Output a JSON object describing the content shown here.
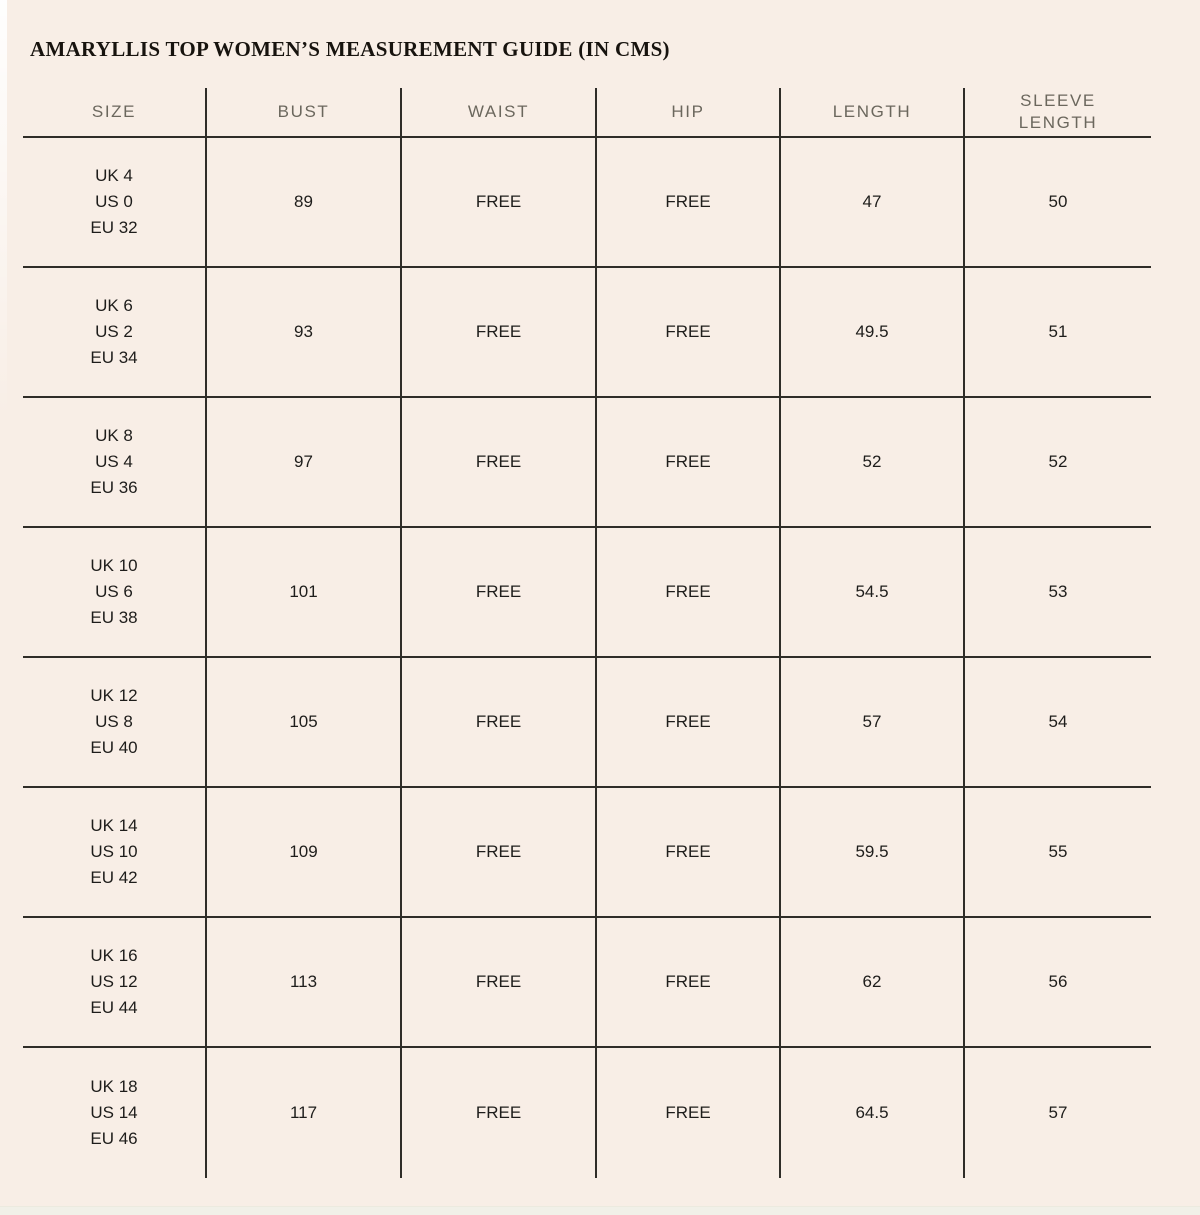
{
  "page": {
    "title": "AMARYLLIS TOP WOMEN’S MEASUREMENT GUIDE (IN CMS)"
  },
  "colors": {
    "background": "#f8eee6",
    "table_line": "#2f2d28",
    "header_text": "#6b675d",
    "cell_text": "#1e1d1b"
  },
  "table": {
    "headers": [
      "SIZE",
      "BUST",
      "WAIST",
      "HIP",
      "LENGTH",
      "SLEEVE\nLENGTH"
    ],
    "rows": [
      {
        "uk": "UK 4",
        "us": "US 0",
        "eu": "EU 32",
        "bust": "89",
        "waist": "FREE",
        "hip": "FREE",
        "length": "47",
        "sleeve_length": "50"
      },
      {
        "uk": "UK 6",
        "us": "US 2",
        "eu": "EU 34",
        "bust": "93",
        "waist": "FREE",
        "hip": "FREE",
        "length": "49.5",
        "sleeve_length": "51"
      },
      {
        "uk": "UK 8",
        "us": "US 4",
        "eu": "EU 36",
        "bust": "97",
        "waist": "FREE",
        "hip": "FREE",
        "length": "52",
        "sleeve_length": "52"
      },
      {
        "uk": "UK 10",
        "us": "US 6",
        "eu": "EU 38",
        "bust": "101",
        "waist": "FREE",
        "hip": "FREE",
        "length": "54.5",
        "sleeve_length": "53"
      },
      {
        "uk": "UK 12",
        "us": "US 8",
        "eu": "EU 40",
        "bust": "105",
        "waist": "FREE",
        "hip": "FREE",
        "length": "57",
        "sleeve_length": "54"
      },
      {
        "uk": "UK 14",
        "us": "US 10",
        "eu": "EU 42",
        "bust": "109",
        "waist": "FREE",
        "hip": "FREE",
        "length": "59.5",
        "sleeve_length": "55"
      },
      {
        "uk": "UK 16",
        "us": "US 12",
        "eu": "EU 44",
        "bust": "113",
        "waist": "FREE",
        "hip": "FREE",
        "length": "62",
        "sleeve_length": "56"
      },
      {
        "uk": "UK 18",
        "us": "US 14",
        "eu": "EU 46",
        "bust": "117",
        "waist": "FREE",
        "hip": "FREE",
        "length": "64.5",
        "sleeve_length": "57"
      }
    ]
  }
}
